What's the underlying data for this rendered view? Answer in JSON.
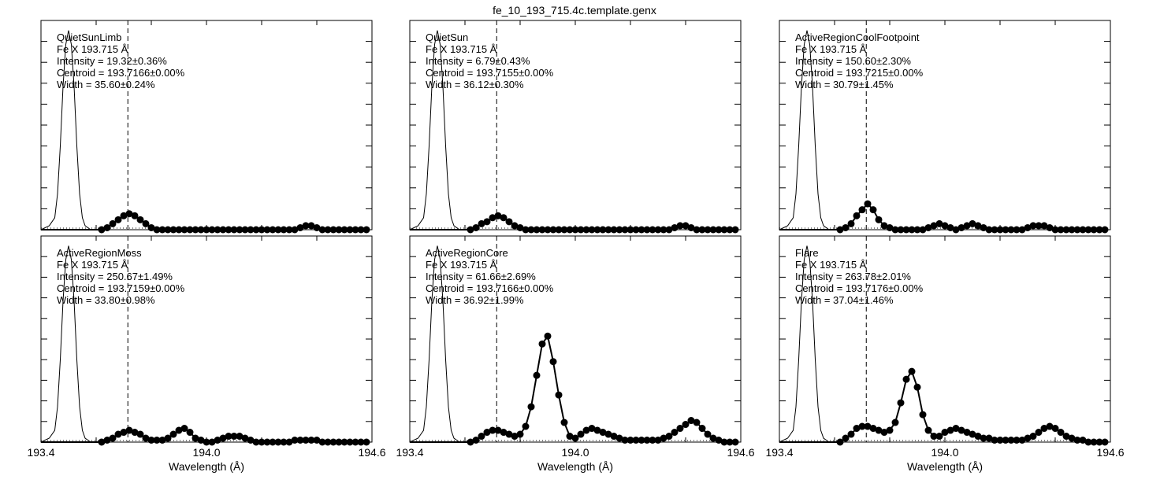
{
  "title": "fe_10_193_715.4c.template.genx",
  "xlabel": "Wavelength (Å)",
  "x_ticks": [
    "193.4",
    "194.0",
    "194.6"
  ],
  "xlim": [
    193.4,
    194.6
  ],
  "marker_wavelength": 193.715,
  "chart_data": [
    {
      "type": "line",
      "title": "QuietSunLimb",
      "ion": "Fe X 193.715 Å",
      "intensity_text": "Intensity = 19.32±0.36%",
      "centroid_text": "Centroid = 193.7166±0.00%",
      "width_text": "Width = 35.60±0.24%",
      "xlim": [
        193.4,
        194.6
      ],
      "ylim": [
        0,
        1.05
      ],
      "x_label": "",
      "instrument_profile": {
        "x": [
          193.4,
          193.43,
          193.45,
          193.46,
          193.47,
          193.48,
          193.49,
          193.5,
          193.51,
          193.52,
          193.53,
          193.54,
          193.55,
          193.56,
          193.58,
          193.6
        ],
        "y": [
          0.0,
          0.02,
          0.06,
          0.18,
          0.42,
          0.72,
          0.93,
          1.0,
          0.93,
          0.72,
          0.42,
          0.18,
          0.06,
          0.02,
          0.0,
          0.0
        ]
      },
      "series": [
        {
          "x": [
            193.4,
            193.56,
            193.62,
            193.64,
            193.66,
            193.68,
            193.7,
            193.72,
            193.74,
            193.76,
            193.78,
            193.8,
            193.82,
            193.84,
            193.86,
            193.88,
            193.9,
            193.92,
            193.94,
            193.96,
            193.98,
            194.0,
            194.02,
            194.04,
            194.06,
            194.08,
            194.1,
            194.12,
            194.14,
            194.16,
            194.18,
            194.2,
            194.22,
            194.24,
            194.26,
            194.28,
            194.3,
            194.32,
            194.34,
            194.36,
            194.38,
            194.4,
            194.42,
            194.44,
            194.46,
            194.48,
            194.5,
            194.52,
            194.54,
            194.56,
            194.58
          ],
          "y": [
            0.0,
            0.0,
            0.0,
            0.01,
            0.03,
            0.05,
            0.07,
            0.08,
            0.07,
            0.05,
            0.03,
            0.01,
            0.0,
            0.0,
            0.0,
            0.0,
            0.0,
            0.0,
            0.0,
            0.0,
            0.0,
            0.0,
            0.0,
            0.0,
            0.0,
            0.0,
            0.0,
            0.0,
            0.0,
            0.0,
            0.0,
            0.0,
            0.0,
            0.0,
            0.0,
            0.0,
            0.0,
            0.0,
            0.01,
            0.02,
            0.02,
            0.01,
            0.0,
            0.0,
            0.0,
            0.0,
            0.0,
            0.0,
            0.0,
            0.0,
            0.0
          ]
        }
      ]
    },
    {
      "type": "line",
      "title": "QuietSun",
      "ion": "Fe X 193.715 Å",
      "intensity_text": "Intensity = 6.79±0.43%",
      "centroid_text": "Centroid = 193.7155±0.00%",
      "width_text": "Width = 36.12±0.30%",
      "xlim": [
        193.4,
        194.6
      ],
      "ylim": [
        0,
        1.05
      ],
      "x_label": "",
      "instrument_profile": {
        "x": [
          193.4,
          193.43,
          193.45,
          193.46,
          193.47,
          193.48,
          193.49,
          193.5,
          193.51,
          193.52,
          193.53,
          193.54,
          193.55,
          193.56,
          193.58,
          193.6
        ],
        "y": [
          0.0,
          0.02,
          0.06,
          0.18,
          0.42,
          0.72,
          0.93,
          1.0,
          0.93,
          0.72,
          0.42,
          0.18,
          0.06,
          0.02,
          0.0,
          0.0
        ]
      },
      "series": [
        {
          "x": [
            193.4,
            193.56,
            193.62,
            193.64,
            193.66,
            193.68,
            193.7,
            193.72,
            193.74,
            193.76,
            193.78,
            193.8,
            193.82,
            193.84,
            193.86,
            193.88,
            193.9,
            193.92,
            193.94,
            193.96,
            193.98,
            194.0,
            194.02,
            194.04,
            194.06,
            194.08,
            194.1,
            194.12,
            194.14,
            194.16,
            194.18,
            194.2,
            194.22,
            194.24,
            194.26,
            194.28,
            194.3,
            194.32,
            194.34,
            194.36,
            194.38,
            194.4,
            194.42,
            194.44,
            194.46,
            194.48,
            194.5,
            194.52,
            194.54,
            194.56,
            194.58
          ],
          "y": [
            0.0,
            0.0,
            0.0,
            0.01,
            0.03,
            0.04,
            0.06,
            0.07,
            0.06,
            0.04,
            0.02,
            0.01,
            0.0,
            0.0,
            0.0,
            0.0,
            0.0,
            0.0,
            0.0,
            0.0,
            0.0,
            0.0,
            0.0,
            0.0,
            0.0,
            0.0,
            0.0,
            0.0,
            0.0,
            0.0,
            0.0,
            0.0,
            0.0,
            0.0,
            0.0,
            0.0,
            0.0,
            0.0,
            0.0,
            0.01,
            0.02,
            0.02,
            0.01,
            0.0,
            0.0,
            0.0,
            0.0,
            0.0,
            0.0,
            0.0,
            0.0
          ]
        }
      ]
    },
    {
      "type": "line",
      "title": "ActiveRegionCoolFootpoint",
      "ion": "Fe X 193.715 Å",
      "intensity_text": "Intensity = 150.60±2.30%",
      "centroid_text": "Centroid = 193.7215±0.00%",
      "width_text": "Width = 30.79±1.45%",
      "xlim": [
        193.4,
        194.6
      ],
      "ylim": [
        0,
        1.05
      ],
      "x_label": "",
      "instrument_profile": {
        "x": [
          193.4,
          193.43,
          193.45,
          193.46,
          193.47,
          193.48,
          193.49,
          193.5,
          193.51,
          193.52,
          193.53,
          193.54,
          193.55,
          193.56,
          193.58,
          193.6
        ],
        "y": [
          0.0,
          0.02,
          0.06,
          0.18,
          0.42,
          0.72,
          0.93,
          1.0,
          0.93,
          0.72,
          0.42,
          0.18,
          0.06,
          0.02,
          0.0,
          0.0
        ]
      },
      "series": [
        {
          "x": [
            193.4,
            193.56,
            193.62,
            193.64,
            193.66,
            193.68,
            193.7,
            193.72,
            193.74,
            193.76,
            193.78,
            193.8,
            193.82,
            193.84,
            193.86,
            193.88,
            193.9,
            193.92,
            193.94,
            193.96,
            193.98,
            194.0,
            194.02,
            194.04,
            194.06,
            194.08,
            194.1,
            194.12,
            194.14,
            194.16,
            194.18,
            194.2,
            194.22,
            194.24,
            194.26,
            194.28,
            194.3,
            194.32,
            194.34,
            194.36,
            194.38,
            194.4,
            194.42,
            194.44,
            194.46,
            194.48,
            194.5,
            194.52,
            194.54,
            194.56,
            194.58
          ],
          "y": [
            0.0,
            0.0,
            0.0,
            0.01,
            0.03,
            0.07,
            0.1,
            0.13,
            0.1,
            0.05,
            0.02,
            0.01,
            0.0,
            0.0,
            0.0,
            0.0,
            0.0,
            0.0,
            0.01,
            0.02,
            0.03,
            0.02,
            0.01,
            0.0,
            0.01,
            0.02,
            0.03,
            0.02,
            0.01,
            0.0,
            0.0,
            0.0,
            0.0,
            0.0,
            0.0,
            0.0,
            0.01,
            0.02,
            0.02,
            0.02,
            0.01,
            0.0,
            0.0,
            0.0,
            0.0,
            0.0,
            0.0,
            0.0,
            0.0,
            0.0,
            0.0
          ]
        }
      ]
    },
    {
      "type": "line",
      "title": "ActiveRegionMoss",
      "ion": "Fe X 193.715 Å",
      "intensity_text": "Intensity = 250.67±1.49%",
      "centroid_text": "Centroid = 193.7159±0.00%",
      "width_text": "Width = 33.80±0.98%",
      "xlim": [
        193.4,
        194.6
      ],
      "ylim": [
        0,
        1.05
      ],
      "x_label": "Wavelength (Å)",
      "instrument_profile": {
        "x": [
          193.4,
          193.43,
          193.45,
          193.46,
          193.47,
          193.48,
          193.49,
          193.5,
          193.51,
          193.52,
          193.53,
          193.54,
          193.55,
          193.56,
          193.58,
          193.6
        ],
        "y": [
          0.0,
          0.02,
          0.06,
          0.18,
          0.42,
          0.72,
          0.93,
          1.0,
          0.93,
          0.72,
          0.42,
          0.18,
          0.06,
          0.02,
          0.0,
          0.0
        ]
      },
      "series": [
        {
          "x": [
            193.4,
            193.56,
            193.62,
            193.64,
            193.66,
            193.68,
            193.7,
            193.72,
            193.74,
            193.76,
            193.78,
            193.8,
            193.82,
            193.84,
            193.86,
            193.88,
            193.9,
            193.92,
            193.94,
            193.96,
            193.98,
            194.0,
            194.02,
            194.04,
            194.06,
            194.08,
            194.1,
            194.12,
            194.14,
            194.16,
            194.18,
            194.2,
            194.22,
            194.24,
            194.26,
            194.28,
            194.3,
            194.32,
            194.34,
            194.36,
            194.38,
            194.4,
            194.42,
            194.44,
            194.46,
            194.48,
            194.5,
            194.52,
            194.54,
            194.56,
            194.58
          ],
          "y": [
            0.0,
            0.0,
            0.0,
            0.01,
            0.02,
            0.04,
            0.05,
            0.06,
            0.05,
            0.04,
            0.02,
            0.01,
            0.01,
            0.01,
            0.02,
            0.04,
            0.06,
            0.07,
            0.05,
            0.02,
            0.01,
            0.0,
            0.0,
            0.01,
            0.02,
            0.03,
            0.03,
            0.03,
            0.02,
            0.01,
            0.0,
            0.0,
            0.0,
            0.0,
            0.0,
            0.0,
            0.0,
            0.01,
            0.01,
            0.01,
            0.01,
            0.01,
            0.0,
            0.0,
            0.0,
            0.0,
            0.0,
            0.0,
            0.0,
            0.0,
            0.0
          ]
        }
      ]
    },
    {
      "type": "line",
      "title": "ActiveRegionCore",
      "ion": "Fe X 193.715 Å",
      "intensity_text": "Intensity = 61.66±2.69%",
      "centroid_text": "Centroid = 193.7166±0.00%",
      "width_text": "Width = 36.92±1.99%",
      "xlim": [
        193.4,
        194.6
      ],
      "ylim": [
        0,
        1.05
      ],
      "x_label": "Wavelength (Å)",
      "instrument_profile": {
        "x": [
          193.4,
          193.43,
          193.45,
          193.46,
          193.47,
          193.48,
          193.49,
          193.5,
          193.51,
          193.52,
          193.53,
          193.54,
          193.55,
          193.56,
          193.58,
          193.6
        ],
        "y": [
          0.0,
          0.02,
          0.06,
          0.18,
          0.42,
          0.72,
          0.93,
          1.0,
          0.93,
          0.72,
          0.42,
          0.18,
          0.06,
          0.02,
          0.0,
          0.0
        ]
      },
      "series": [
        {
          "x": [
            193.4,
            193.56,
            193.62,
            193.64,
            193.66,
            193.68,
            193.7,
            193.72,
            193.74,
            193.76,
            193.78,
            193.8,
            193.82,
            193.84,
            193.86,
            193.88,
            193.9,
            193.92,
            193.94,
            193.96,
            193.98,
            194.0,
            194.02,
            194.04,
            194.06,
            194.08,
            194.1,
            194.12,
            194.14,
            194.16,
            194.18,
            194.2,
            194.22,
            194.24,
            194.26,
            194.28,
            194.3,
            194.32,
            194.34,
            194.36,
            194.38,
            194.4,
            194.42,
            194.44,
            194.46,
            194.48,
            194.5,
            194.52,
            194.54,
            194.56,
            194.58
          ],
          "y": [
            0.0,
            0.0,
            0.0,
            0.01,
            0.03,
            0.05,
            0.06,
            0.06,
            0.05,
            0.04,
            0.03,
            0.04,
            0.08,
            0.18,
            0.34,
            0.5,
            0.54,
            0.41,
            0.24,
            0.1,
            0.03,
            0.02,
            0.04,
            0.06,
            0.07,
            0.06,
            0.05,
            0.04,
            0.03,
            0.02,
            0.01,
            0.01,
            0.01,
            0.01,
            0.01,
            0.01,
            0.01,
            0.02,
            0.03,
            0.05,
            0.07,
            0.09,
            0.11,
            0.1,
            0.07,
            0.04,
            0.02,
            0.01,
            0.0,
            0.0,
            0.0
          ]
        }
      ]
    },
    {
      "type": "line",
      "title": "Flare",
      "ion": "Fe X 193.715 Å",
      "intensity_text": "Intensity = 263.78±2.01%",
      "centroid_text": "Centroid = 193.7176±0.00%",
      "width_text": "Width = 37.04±1.46%",
      "xlim": [
        193.4,
        194.6
      ],
      "ylim": [
        0,
        1.05
      ],
      "x_label": "Wavelength (Å)",
      "instrument_profile": {
        "x": [
          193.4,
          193.43,
          193.45,
          193.46,
          193.47,
          193.48,
          193.49,
          193.5,
          193.51,
          193.52,
          193.53,
          193.54,
          193.55,
          193.56,
          193.58,
          193.6
        ],
        "y": [
          0.0,
          0.02,
          0.06,
          0.18,
          0.42,
          0.72,
          0.93,
          1.0,
          0.93,
          0.72,
          0.42,
          0.18,
          0.06,
          0.02,
          0.0,
          0.0
        ]
      },
      "series": [
        {
          "x": [
            193.4,
            193.56,
            193.62,
            193.64,
            193.66,
            193.68,
            193.7,
            193.72,
            193.74,
            193.76,
            193.78,
            193.8,
            193.82,
            193.84,
            193.86,
            193.88,
            193.9,
            193.92,
            193.94,
            193.96,
            193.98,
            194.0,
            194.02,
            194.04,
            194.06,
            194.08,
            194.1,
            194.12,
            194.14,
            194.16,
            194.18,
            194.2,
            194.22,
            194.24,
            194.26,
            194.28,
            194.3,
            194.32,
            194.34,
            194.36,
            194.38,
            194.4,
            194.42,
            194.44,
            194.46,
            194.48,
            194.5,
            194.52,
            194.54,
            194.56,
            194.58
          ],
          "y": [
            0.0,
            0.0,
            0.0,
            0.02,
            0.04,
            0.07,
            0.08,
            0.08,
            0.07,
            0.06,
            0.05,
            0.06,
            0.1,
            0.2,
            0.32,
            0.36,
            0.28,
            0.14,
            0.06,
            0.03,
            0.03,
            0.05,
            0.06,
            0.07,
            0.06,
            0.05,
            0.04,
            0.03,
            0.02,
            0.02,
            0.01,
            0.01,
            0.01,
            0.01,
            0.01,
            0.01,
            0.02,
            0.03,
            0.05,
            0.07,
            0.08,
            0.07,
            0.05,
            0.03,
            0.02,
            0.01,
            0.01,
            0.0,
            0.0,
            0.0,
            0.0
          ]
        }
      ]
    }
  ]
}
